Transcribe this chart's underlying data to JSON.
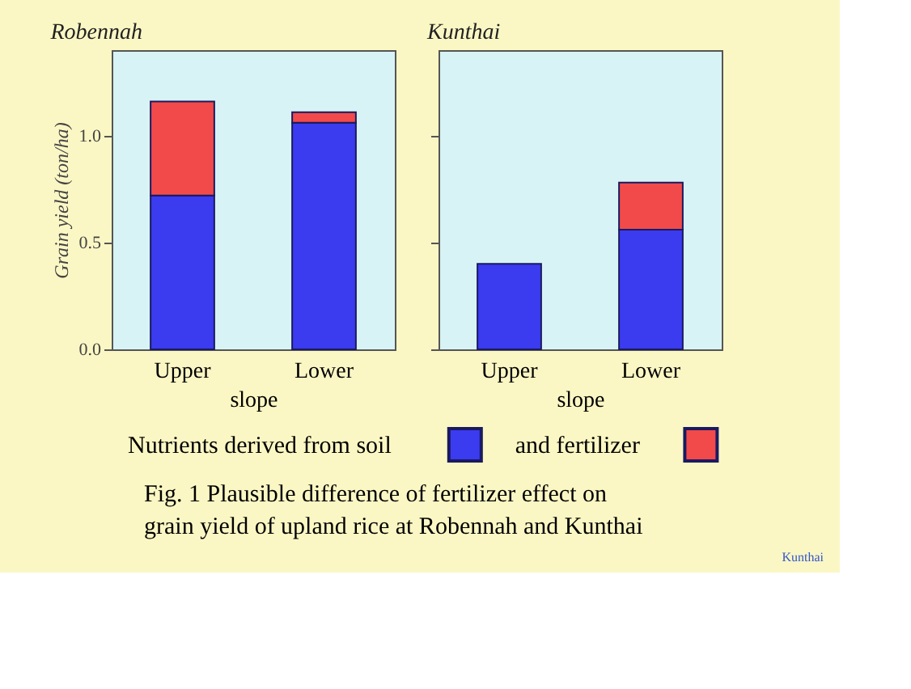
{
  "chart_data": [
    {
      "type": "bar",
      "title": "Robennah",
      "xlabel": "slope",
      "ylabel": "Grain yield (ton/ha)",
      "categories": [
        "Upper",
        "Lower"
      ],
      "stacked": true,
      "series": [
        {
          "name": "Nutrients derived from soil",
          "color": "#3b3bf0",
          "values": [
            0.72,
            1.06
          ]
        },
        {
          "name": "and fertilizer",
          "color": "#f24a4a",
          "values": [
            0.44,
            0.05
          ]
        }
      ],
      "ylim": [
        0,
        1.4
      ],
      "yticks": [
        {
          "value": 0,
          "label": "0.0"
        },
        {
          "value": 0.5,
          "label": "0.5"
        },
        {
          "value": 1,
          "label": "1.0"
        }
      ],
      "grid": false,
      "legend": "bottom",
      "annotations": [
        "Fig. 1  Plausible difference of fertilizer effect on",
        "grain yield of upland rice at Robennah and Kunthai"
      ]
    },
    {
      "type": "bar",
      "title": "Kunthai",
      "xlabel": "slope",
      "categories": [
        "Upper",
        "Lower"
      ],
      "stacked": true,
      "series": [
        {
          "color": "#3b3bf0",
          "values": [
            0.4,
            0.56
          ]
        },
        {
          "color": "#f24a4a",
          "values": [
            null,
            0.22
          ]
        }
      ],
      "ylim": [
        0,
        1.4
      ],
      "yticks": [
        {
          "value": 0,
          "label": null
        },
        {
          "value": 0.5,
          "label": null
        },
        {
          "value": 1,
          "label": null
        }
      ],
      "grid": false,
      "tick_labels": "x",
      "annotations": [
        "Kunthai"
      ]
    }
  ]
}
